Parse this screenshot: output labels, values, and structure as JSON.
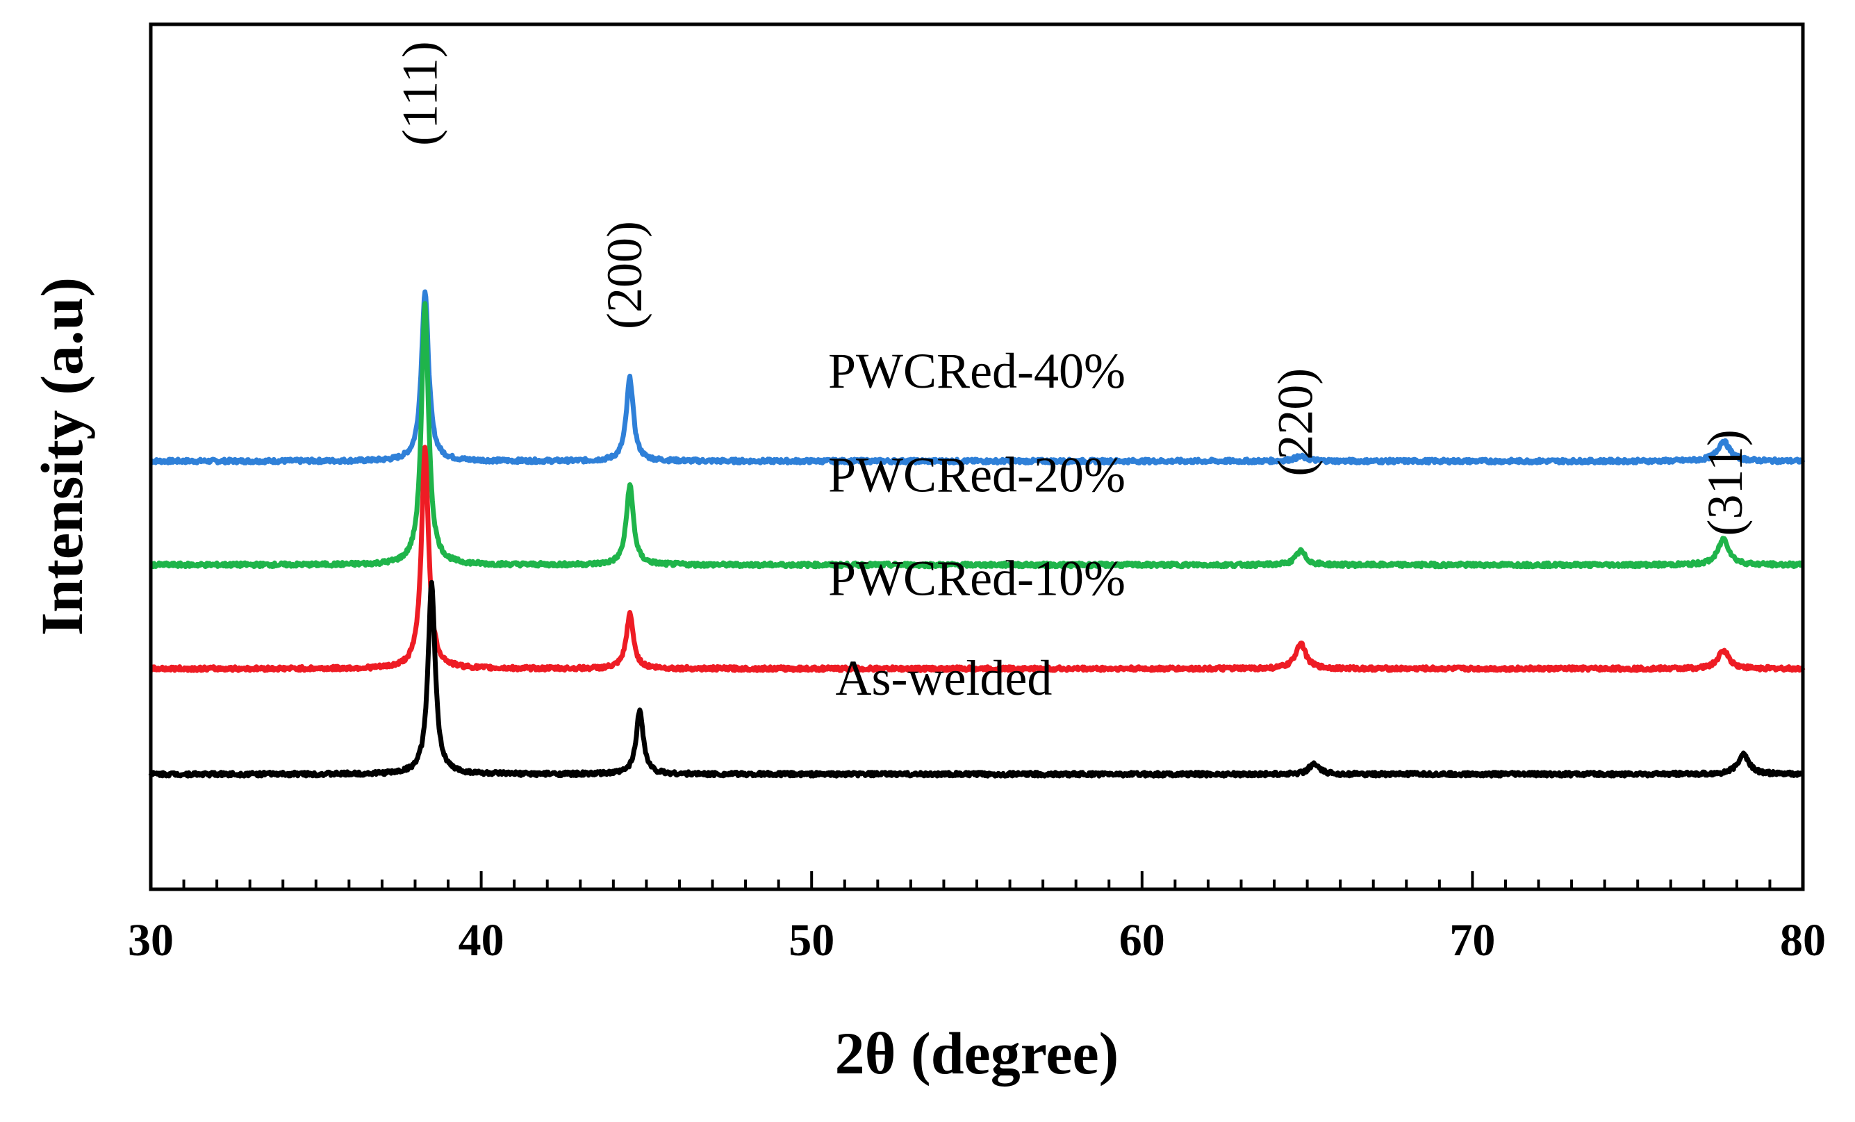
{
  "chart_data": {
    "type": "line",
    "xlabel": "2θ (degree)",
    "ylabel": "Intensity (a.u)",
    "xlim": [
      30,
      80
    ],
    "xticks": [
      30,
      40,
      50,
      60,
      70,
      80
    ],
    "x_minor_step": 1,
    "ylim": [
      0,
      100
    ],
    "grid": false,
    "peak_labels": [
      {
        "text": "(111)",
        "x": 38.3,
        "y": 92
      },
      {
        "text": "(200)",
        "x": 44.5,
        "y": 71
      },
      {
        "text": "(220)",
        "x": 64.8,
        "y": 54
      },
      {
        "text": "(311)",
        "x": 77.8,
        "y": 47
      }
    ],
    "series": [
      {
        "name": "PWCRed-40%",
        "label_x": 55.0,
        "label_y": 58,
        "color": "#2f80d8",
        "baseline": 49.5,
        "peaks": [
          {
            "center": 38.3,
            "height": 19.6,
            "width": 0.13
          },
          {
            "center": 44.5,
            "height": 9.6,
            "width": 0.13
          },
          {
            "center": 64.8,
            "height": 0.5,
            "width": 0.25
          },
          {
            "center": 77.6,
            "height": 2.3,
            "width": 0.22
          }
        ]
      },
      {
        "name": "PWCRed-20%",
        "label_x": 55.0,
        "label_y": 46,
        "color": "#1fb44a",
        "baseline": 37.5,
        "peaks": [
          {
            "center": 38.3,
            "height": 30,
            "width": 0.13
          },
          {
            "center": 44.5,
            "height": 9.2,
            "width": 0.13
          },
          {
            "center": 64.8,
            "height": 1.6,
            "width": 0.18
          },
          {
            "center": 77.6,
            "height": 3.0,
            "width": 0.2
          }
        ]
      },
      {
        "name": "PWCRed-10%",
        "label_x": 55.0,
        "label_y": 34,
        "color": "#ee1c24",
        "baseline": 25.5,
        "peaks": [
          {
            "center": 38.3,
            "height": 25.5,
            "width": 0.13
          },
          {
            "center": 44.5,
            "height": 6.3,
            "width": 0.13
          },
          {
            "center": 64.8,
            "height": 3.0,
            "width": 0.18
          },
          {
            "center": 77.6,
            "height": 2.1,
            "width": 0.2
          }
        ]
      },
      {
        "name": "As-welded",
        "label_x": 54.0,
        "label_y": 22.5,
        "color": "#000000",
        "baseline": 13.3,
        "peaks": [
          {
            "center": 38.5,
            "height": 22,
            "width": 0.13
          },
          {
            "center": 44.8,
            "height": 7.4,
            "width": 0.13
          },
          {
            "center": 65.2,
            "height": 1.2,
            "width": 0.18
          },
          {
            "center": 78.2,
            "height": 2.3,
            "width": 0.2
          }
        ]
      }
    ]
  }
}
